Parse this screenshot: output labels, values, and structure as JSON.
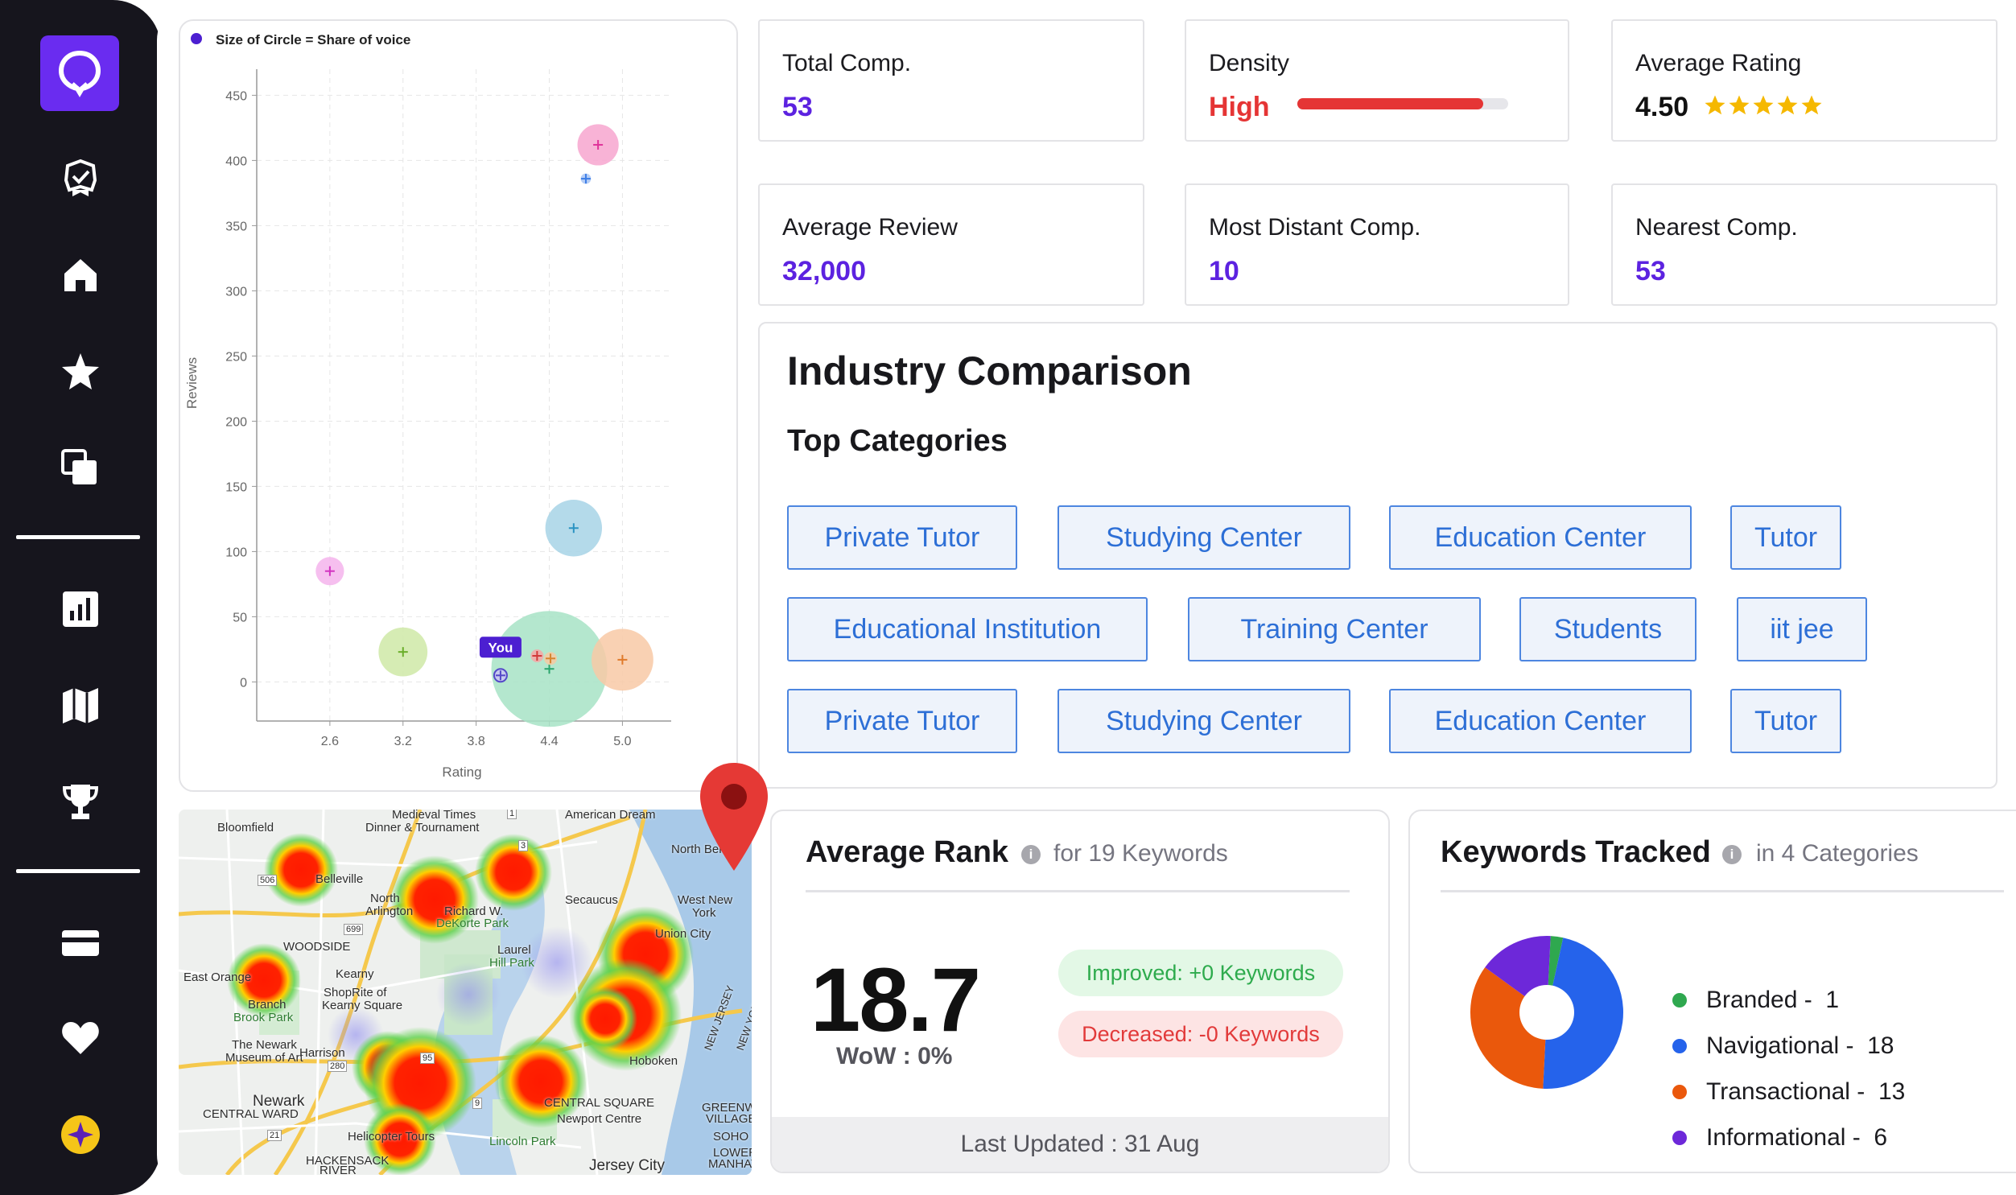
{
  "sidebar": {
    "items": [
      {
        "name": "badge-check-icon"
      },
      {
        "name": "home-icon"
      },
      {
        "name": "star-icon"
      },
      {
        "name": "copy-icon"
      },
      {
        "name": "bar-chart-icon"
      },
      {
        "name": "map-icon"
      },
      {
        "name": "trophy-icon"
      },
      {
        "name": "card-icon"
      },
      {
        "name": "heart-icon"
      },
      {
        "name": "sparkle-icon"
      }
    ]
  },
  "stats": [
    {
      "label": "Total Comp.",
      "value": "53"
    },
    {
      "label": "Density",
      "value": "High",
      "level": 0.88
    },
    {
      "label": "Average Rating",
      "value": "4.50",
      "stars": 5
    },
    {
      "label": "Average Review",
      "value": "32,000"
    },
    {
      "label": "Most Distant Comp.",
      "value": "10"
    },
    {
      "label": "Nearest Comp.",
      "value": "53"
    }
  ],
  "chart_data": {
    "type": "scatter",
    "legend": "Size of Circle = Share of voice",
    "xlabel": "Rating",
    "ylabel": "Reviews",
    "x_ticks": [
      "2.6",
      "3.2",
      "3.8",
      "4.4",
      "5.0"
    ],
    "y_ticks": [
      "0",
      "50",
      "100",
      "150",
      "200",
      "250",
      "300",
      "350",
      "400",
      "450"
    ],
    "xlim": [
      2.0,
      5.4
    ],
    "ylim": [
      -30,
      470
    ],
    "you_label": "You",
    "points": [
      {
        "x": 4.8,
        "y": 412,
        "share": 1.6,
        "color": "#f7a6cf",
        "cross": "#e0339a"
      },
      {
        "x": 4.7,
        "y": 386,
        "share": 0.4,
        "color": "#a9c5f5",
        "cross": "#3d7ee6"
      },
      {
        "x": 2.6,
        "y": 85,
        "share": 1.1,
        "color": "#f5b4ec",
        "cross": "#d233c0"
      },
      {
        "x": 4.6,
        "y": 118,
        "share": 2.2,
        "color": "#a7d3e6",
        "cross": "#2b93c2"
      },
      {
        "x": 3.2,
        "y": 23,
        "share": 1.9,
        "color": "#cfe9a7",
        "cross": "#6aae2a"
      },
      {
        "x": 4.4,
        "y": 10,
        "share": 4.5,
        "color": "#a7e3c6",
        "cross": "#2aa56c"
      },
      {
        "x": 5.0,
        "y": 17,
        "share": 2.4,
        "color": "#f8c9a6",
        "cross": "#e07a2b"
      },
      {
        "x": 4.3,
        "y": 20,
        "share": 0.5,
        "color": "#f6a7a7",
        "cross": "#d23a3a"
      },
      {
        "x": 4.41,
        "y": 18,
        "share": 0.5,
        "color": "#f6c9a2",
        "cross": "#d7852f"
      },
      {
        "x": 4.0,
        "y": 5,
        "share": 0.5,
        "color": "#c9c3f3",
        "cross": "#5448c8",
        "is_you": true
      }
    ]
  },
  "industry": {
    "title": "Industry Comparison",
    "subtitle": "Top Categories",
    "chips": [
      "Private Tutor",
      "Studying Center",
      "Education Center",
      "Tutor",
      "Educational Institution",
      "Training Center",
      "Students",
      "iit jee",
      "Private Tutor",
      "Studying Center",
      "Education Center",
      "Tutor"
    ]
  },
  "map": {
    "labels": [
      "Bloomfield",
      "Medieval Times",
      "Dinner & Tournament",
      "American Dream",
      "North Bergen",
      "Belleville",
      "North",
      "Arlington",
      "Richard W.",
      "DeKorte Park",
      "Secaucus",
      "West New",
      "York",
      "Union City",
      "Laurel",
      "Hill Park",
      "East Orange",
      "Branch",
      "Brook Park",
      "Kearny",
      "ShopRite of",
      "Kearny Square",
      "The Newark",
      "Museum of Art",
      "Harrison",
      "Newark",
      "Hoboken",
      "NEW JERSEY",
      "NEW YORK",
      "CENTRAL WARD",
      "CENTRAL SQUARE",
      "Newport Centre",
      "Helicopter Tours",
      "Lincoln Park",
      "Jersey City",
      "GREENWICH",
      "VILLAGE",
      "SOHO",
      "LOWER",
      "MANHATTAN",
      "HACKENSACK",
      "RIVER",
      "WOODSIDE",
      "506",
      "699",
      "280",
      "95",
      "9",
      "21",
      "3",
      "1"
    ]
  },
  "rank": {
    "title": "Average Rank",
    "subtitle": "for 19 Keywords",
    "value": "18.7",
    "wow": "WoW : 0%",
    "improved": "Improved: +0 Keywords",
    "decreased": "Decreased: -0 Keywords",
    "updated": "Last Updated : 31 Aug"
  },
  "keywords": {
    "title": "Keywords Tracked",
    "subtitle": "in 4 Categories",
    "items": [
      {
        "name": "Branded",
        "count": 1,
        "color": "#2fa84f",
        "label": "Branded -  1"
      },
      {
        "name": "Navigational",
        "count": 18,
        "color": "#2563eb",
        "label": "Navigational -  18"
      },
      {
        "name": "Transactional",
        "count": 13,
        "color": "#ea580c",
        "label": "Transactional -  13"
      },
      {
        "name": "Informational",
        "count": 6,
        "color": "#6d28d9",
        "label": "Informational -  6"
      }
    ]
  }
}
